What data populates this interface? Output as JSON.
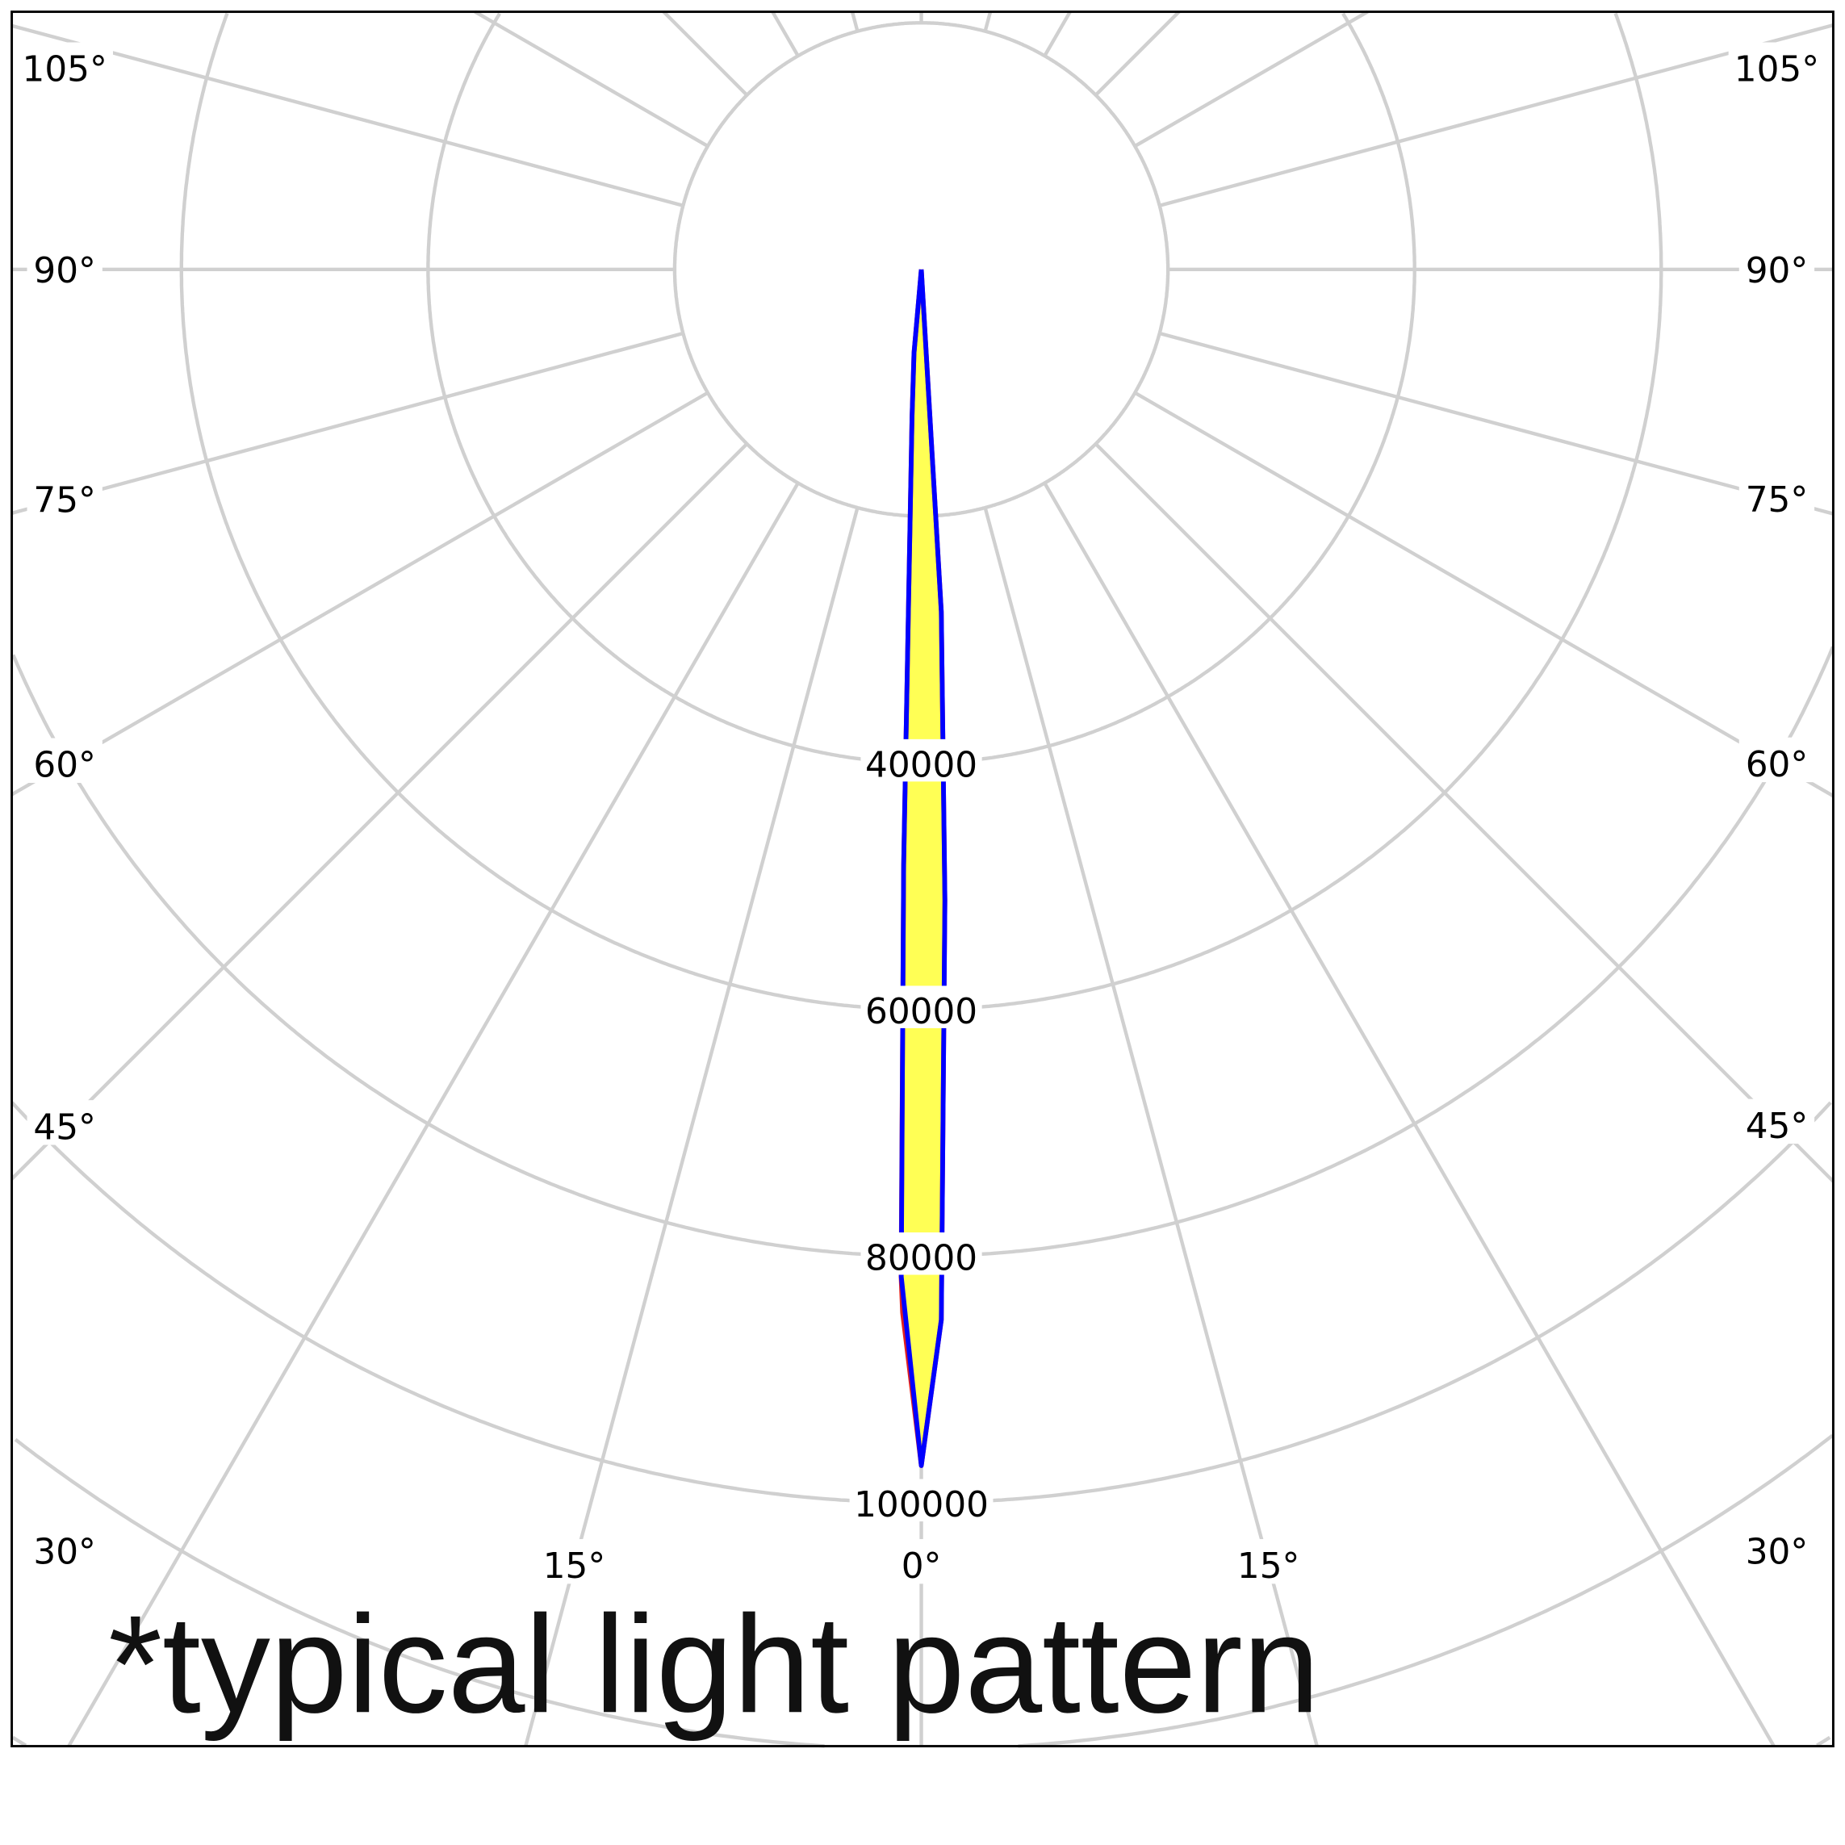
{
  "chart_data": {
    "type": "polar",
    "title": "",
    "annotation": "*typical light pattern",
    "radial_axis": {
      "range": [
        0,
        140000
      ],
      "grid_values": [
        20000,
        40000,
        60000,
        80000,
        100000,
        120000,
        140000
      ],
      "tick_labels": [
        "40000",
        "60000",
        "80000",
        "100000"
      ],
      "tick_values": [
        40000,
        60000,
        80000,
        100000
      ]
    },
    "angular_axis": {
      "zero_direction": "down",
      "step_deg": 15,
      "left_labels": [
        "105°",
        "90°",
        "75°",
        "60°",
        "45°",
        "30°"
      ],
      "left_values": [
        105,
        90,
        75,
        60,
        45,
        30
      ],
      "bottom_labels": [
        "15°",
        "0°",
        "15°"
      ],
      "bottom_values": [
        -15,
        0,
        15
      ],
      "right_labels": [
        "105°",
        "90°",
        "75°",
        "60°",
        "45°",
        "30°"
      ],
      "right_values": [
        105,
        90,
        75,
        60,
        45,
        30
      ]
    },
    "grid": true,
    "colors": {
      "grid": "#d0d0d0",
      "fill": "#ffff55",
      "frame": "#000000"
    },
    "series": [
      {
        "color": "#e02020",
        "points": [
          [
            -90,
            0
          ],
          [
            -5,
            6800
          ],
          [
            -3.6,
            12000
          ],
          [
            -1.7,
            48300
          ],
          [
            -1.15,
            81700
          ],
          [
            -1.03,
            84600
          ],
          [
            0,
            97000
          ],
          [
            1.09,
            85200
          ],
          [
            2.14,
            51200
          ],
          [
            3.34,
            27800
          ],
          [
            90,
            0
          ]
        ]
      },
      {
        "color": "#0000ff",
        "points": [
          [
            -90,
            0
          ],
          [
            -5,
            6800
          ],
          [
            -3.6,
            12000
          ],
          [
            -1.7,
            48300
          ],
          [
            -1.14,
            81700
          ],
          [
            0,
            97000
          ],
          [
            1.09,
            85200
          ],
          [
            2.14,
            51200
          ],
          [
            3.34,
            27800
          ],
          [
            90,
            0
          ]
        ]
      }
    ]
  }
}
